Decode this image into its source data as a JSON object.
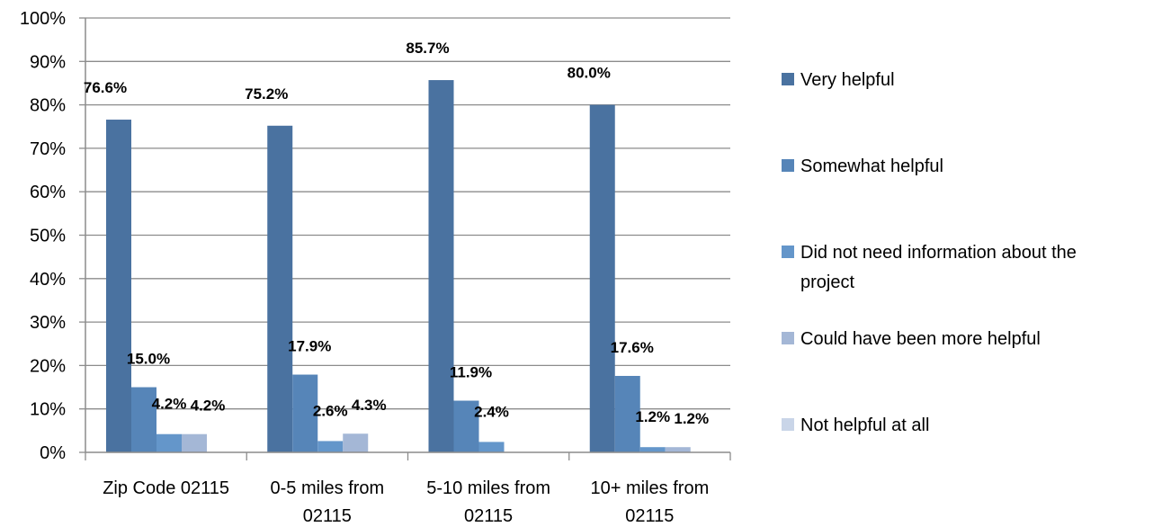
{
  "chart_data": {
    "type": "bar",
    "title": "",
    "xlabel": "",
    "ylabel": "",
    "ylim": [
      0,
      100
    ],
    "yticks": [
      "0%",
      "10%",
      "20%",
      "30%",
      "40%",
      "50%",
      "60%",
      "70%",
      "80%",
      "90%",
      "100%"
    ],
    "grid": true,
    "legend_position": "right",
    "categories": [
      [
        "Zip Code 02115"
      ],
      [
        "0-5 miles from",
        "02115"
      ],
      [
        "5-10 miles from",
        "02115"
      ],
      [
        "10+ miles from",
        "02115"
      ]
    ],
    "series": [
      {
        "name": [
          "Very helpful"
        ],
        "color": "#4A72A0",
        "values": [
          76.6,
          75.2,
          85.7,
          80.0
        ],
        "labels": [
          "76.6%",
          "75.2%",
          "85.7%",
          "80.0%"
        ]
      },
      {
        "name": [
          "Somewhat helpful"
        ],
        "color": "#5685B8",
        "values": [
          15.0,
          17.9,
          11.9,
          17.6
        ],
        "labels": [
          "15.0%",
          "17.9%",
          "11.9%",
          "17.6%"
        ]
      },
      {
        "name": [
          "Did not need information about the",
          "project"
        ],
        "color": "#6496CA",
        "values": [
          4.2,
          2.6,
          2.4,
          1.2
        ],
        "labels": [
          "4.2%",
          "2.6%",
          "2.4%",
          "1.2%"
        ]
      },
      {
        "name": [
          "Could have been more helpful"
        ],
        "color": "#A4B7D6",
        "values": [
          4.2,
          4.3,
          0,
          1.2
        ],
        "labels": [
          "4.2%",
          "4.3%",
          "",
          "1.2%"
        ]
      },
      {
        "name": [
          "Not helpful at all"
        ],
        "color": "#C9D5E8",
        "values": [
          0,
          0,
          0,
          0
        ],
        "labels": [
          "",
          "",
          "",
          ""
        ]
      }
    ]
  }
}
